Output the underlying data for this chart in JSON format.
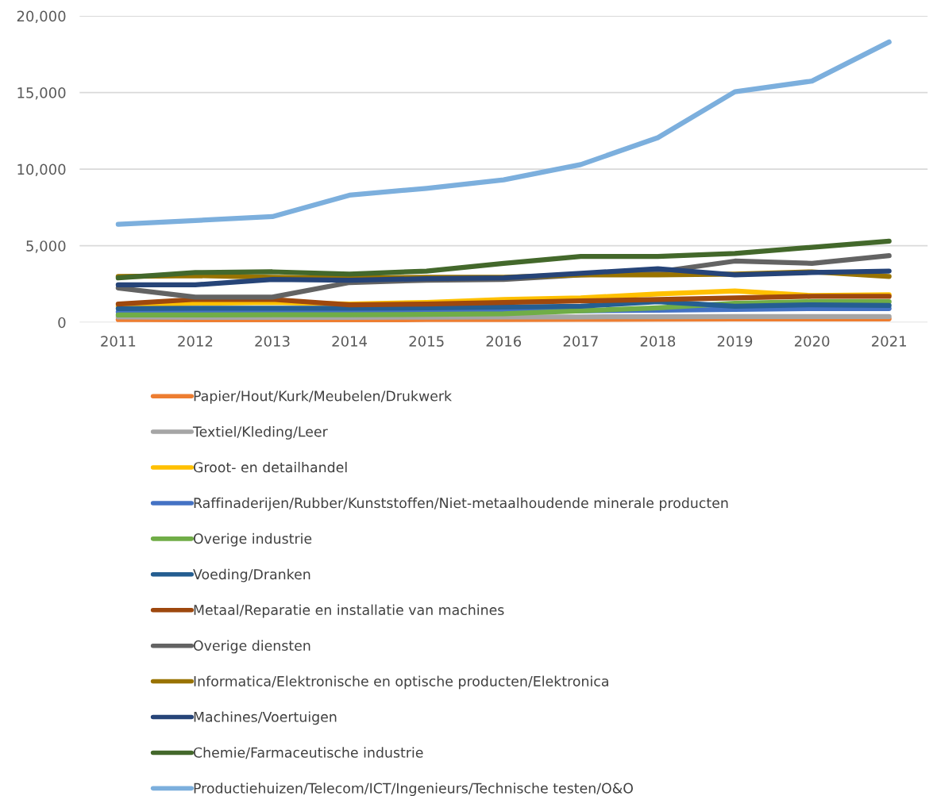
{
  "chart_data": {
    "type": "line",
    "categories": [
      "2011",
      "2012",
      "2013",
      "2014",
      "2015",
      "2016",
      "2017",
      "2018",
      "2019",
      "2020",
      "2021"
    ],
    "ylim": [
      0,
      20000
    ],
    "yticks": [
      {
        "value": 0,
        "label": "0"
      },
      {
        "value": 5000,
        "label": "5,000"
      },
      {
        "value": 10000,
        "label": "10,000"
      },
      {
        "value": 15000,
        "label": "15,000"
      },
      {
        "value": 20000,
        "label": "20,000"
      }
    ],
    "grid": "y",
    "legend": "bottom",
    "marker": "none",
    "line_style": "solid",
    "series": [
      {
        "name": "Papier/Hout/Kurk/Meubelen/Drukwerk",
        "color": "#ed7d31",
        "values": [
          180,
          170,
          170,
          170,
          180,
          190,
          200,
          210,
          220,
          230,
          230
        ]
      },
      {
        "name": "Textiel/Kleding/Leer",
        "color": "#a5a5a5",
        "values": [
          350,
          330,
          330,
          330,
          340,
          350,
          360,
          370,
          380,
          380,
          380
        ]
      },
      {
        "name": "Groot- en detailhandel",
        "color": "#ffc000",
        "values": [
          1050,
          1250,
          1300,
          1200,
          1300,
          1500,
          1600,
          1850,
          2050,
          1750,
          1800
        ]
      },
      {
        "name": "Raffinaderijen/Rubber/Kunststoffen/Niet-metaalhoudende minerale producten",
        "color": "#4472c4",
        "values": [
          680,
          680,
          680,
          690,
          700,
          740,
          760,
          800,
          850,
          900,
          900
        ]
      },
      {
        "name": "Overige industrie",
        "color": "#70ad47",
        "values": [
          480,
          480,
          500,
          500,
          520,
          560,
          760,
          950,
          1250,
          1350,
          1350
        ]
      },
      {
        "name": "Voeding/Dranken",
        "color": "#255e91",
        "values": [
          900,
          920,
          920,
          920,
          950,
          1000,
          1050,
          1350,
          1050,
          1150,
          1100
        ]
      },
      {
        "name": "Metaal/Reparatie en installatie van machines",
        "color": "#9e480e",
        "values": [
          1200,
          1500,
          1500,
          1150,
          1200,
          1300,
          1400,
          1500,
          1600,
          1700,
          1700
        ]
      },
      {
        "name": "Overige diensten",
        "color": "#636363",
        "values": [
          2250,
          1650,
          1650,
          2600,
          2750,
          2800,
          3100,
          3300,
          4000,
          3850,
          4350
        ]
      },
      {
        "name": "Informatica/Elektronische en optische producten/Elektronica",
        "color": "#997300",
        "values": [
          3000,
          3050,
          2950,
          2900,
          2950,
          2950,
          3100,
          3100,
          3150,
          3300,
          3000
        ]
      },
      {
        "name": "Machines/Voertuigen",
        "color": "#264478",
        "values": [
          2450,
          2450,
          2800,
          2750,
          2850,
          2900,
          3200,
          3500,
          3100,
          3250,
          3350
        ]
      },
      {
        "name": "Chemie/Farmaceutische industrie",
        "color": "#43682b",
        "values": [
          2900,
          3250,
          3300,
          3150,
          3350,
          3850,
          4300,
          4300,
          4500,
          4900,
          5300
        ]
      },
      {
        "name": "Productiehuizen/Telecom/ICT/Ingenieurs/Technische testen/O&O",
        "color": "#7cafdd",
        "values": [
          6400,
          6650,
          6900,
          8300,
          8750,
          9300,
          10300,
          12050,
          15050,
          15750,
          18300
        ]
      }
    ]
  }
}
